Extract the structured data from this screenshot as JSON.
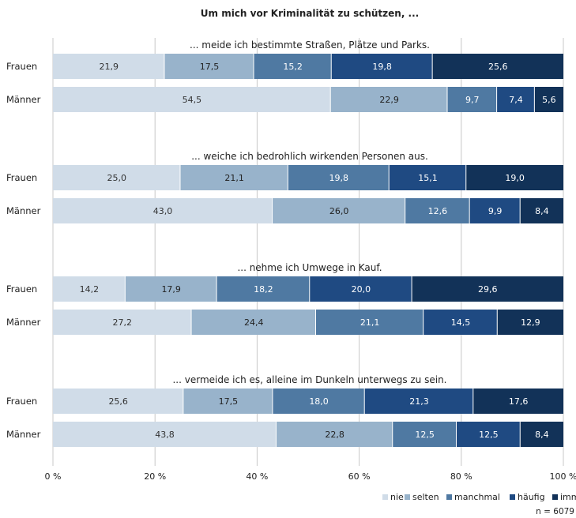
{
  "chart_data": {
    "type": "bar",
    "orientation": "horizontal",
    "stacked": true,
    "title": "Um mich vor Kriminalität zu schützen, ...",
    "xlim": [
      0,
      100
    ],
    "x_ticks": [
      "0 %",
      "20 %",
      "40 %",
      "60 %",
      "80 %",
      "100 %"
    ],
    "grid": true,
    "legend_position": "bottom-right",
    "legend": [
      {
        "label": "nie",
        "color": "#d0dce8"
      },
      {
        "label": "selten",
        "color": "#98b3cb"
      },
      {
        "label": "manchmal",
        "color": "#4f79a2"
      },
      {
        "label": "häufig",
        "color": "#1f4a82"
      },
      {
        "label": "immer",
        "color": "#123258"
      }
    ],
    "groups": [
      {
        "title": "... meide ich bestimmte Straßen, Plätze und Parks.",
        "rows": [
          {
            "label": "Frauen",
            "values": [
              "21,9",
              "17,5",
              "15,2",
              "19,8",
              "25,6"
            ]
          },
          {
            "label": "Männer",
            "values": [
              "54,5",
              "22,9",
              "9,7",
              "7,4",
              "5,6"
            ]
          }
        ]
      },
      {
        "title": "... weiche ich bedrohlich wirkenden Personen aus.",
        "rows": [
          {
            "label": "Frauen",
            "values": [
              "25,0",
              "21,1",
              "19,8",
              "15,1",
              "19,0"
            ]
          },
          {
            "label": "Männer",
            "values": [
              "43,0",
              "26,0",
              "12,6",
              "9,9",
              "8,4"
            ]
          }
        ]
      },
      {
        "title": "... nehme ich Umwege in Kauf.",
        "rows": [
          {
            "label": "Frauen",
            "values": [
              "14,2",
              "17,9",
              "18,2",
              "20,0",
              "29,6"
            ]
          },
          {
            "label": "Männer",
            "values": [
              "27,2",
              "24,4",
              "21,1",
              "14,5",
              "12,9"
            ]
          }
        ]
      },
      {
        "title": "... vermeide ich es, alleine im Dunkeln unterwegs zu sein.",
        "rows": [
          {
            "label": "Frauen",
            "values": [
              "25,6",
              "17,5",
              "18,0",
              "21,3",
              "17,6"
            ]
          },
          {
            "label": "Männer",
            "values": [
              "43,8",
              "22,8",
              "12,5",
              "12,5",
              "8,4"
            ]
          }
        ]
      }
    ],
    "note": "n = 6079"
  }
}
